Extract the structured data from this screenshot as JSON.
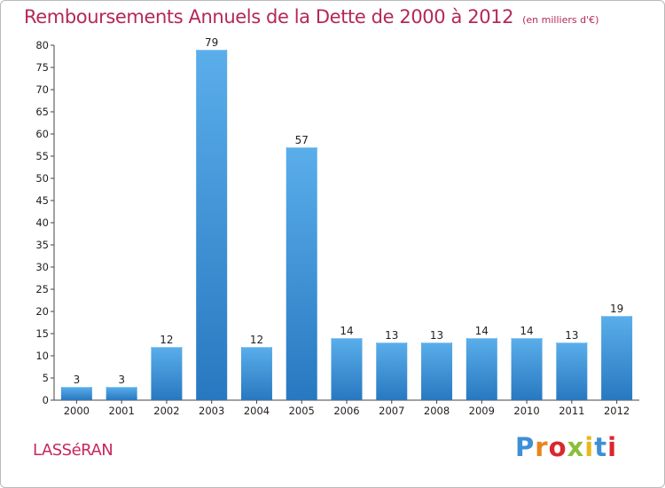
{
  "title": "Remboursements Annuels de la Dette de 2000 à 2012",
  "subtitle": "(en milliers d'€)",
  "commune": "LASSéRAN",
  "logo": {
    "letters": [
      "P",
      "r",
      "o",
      "x",
      "i",
      "t",
      "i"
    ],
    "colors": [
      "#3d8fd6",
      "#e8841d",
      "#d8282e",
      "#8bbf3a",
      "#e8b81d",
      "#3d8fd6",
      "#d8282e"
    ]
  },
  "chart_data": {
    "type": "bar",
    "title": "Remboursements Annuels de la Dette de 2000 à 2012",
    "subtitle": "(en milliers d'€)",
    "xlabel": "",
    "ylabel": "",
    "categories": [
      "2000",
      "2001",
      "2002",
      "2003",
      "2004",
      "2005",
      "2006",
      "2007",
      "2008",
      "2009",
      "2010",
      "2011",
      "2012"
    ],
    "values": [
      3,
      3,
      12,
      79,
      12,
      57,
      14,
      13,
      13,
      14,
      14,
      13,
      19
    ],
    "ylim": [
      0,
      80
    ],
    "yticks": [
      0,
      5,
      10,
      15,
      20,
      25,
      30,
      35,
      40,
      45,
      50,
      55,
      60,
      65,
      70,
      75,
      80
    ],
    "grid": false,
    "colors": {
      "bar": "#3a8fd8",
      "bar_light": "#5aaeea",
      "bar_dark": "#2878c0"
    }
  }
}
